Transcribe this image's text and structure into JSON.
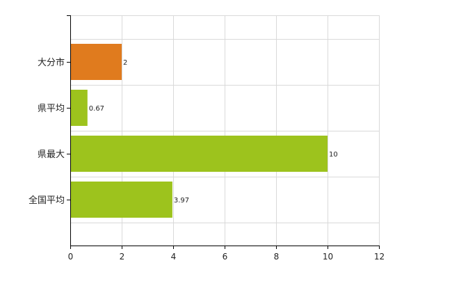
{
  "chart_data": {
    "type": "bar",
    "orientation": "horizontal",
    "categories": [
      "大分市",
      "県平均",
      "県最大",
      "全国平均"
    ],
    "values": [
      2,
      0.67,
      10,
      3.97
    ],
    "data_labels": [
      "2",
      "0.67",
      "10",
      "3.97"
    ],
    "xlim": [
      0,
      12
    ],
    "x_ticks": [
      0,
      2,
      4,
      6,
      8,
      10,
      12
    ],
    "x_tick_labels": [
      "0",
      "2",
      "4",
      "6",
      "8",
      "10",
      "12"
    ],
    "grid": true,
    "legend": "none",
    "colors": {
      "highlight": "#E07B1E",
      "default": "#9DC31D",
      "grid": "#D9D9D9",
      "axis": "#000000"
    },
    "highlight_index": 0
  }
}
